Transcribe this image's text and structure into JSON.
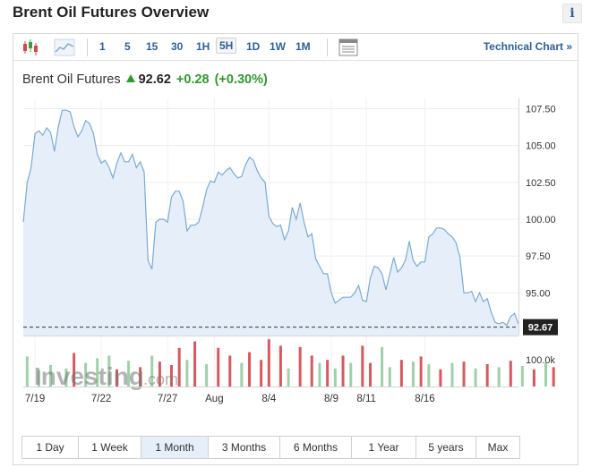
{
  "header": {
    "title": "Brent Oil Futures Overview",
    "info_label": "i"
  },
  "toolbar": {
    "intervals": [
      "1",
      "5",
      "15",
      "30",
      "1H",
      "5H",
      "1D",
      "1W",
      "1M"
    ],
    "active_interval": "5H",
    "technical_chart_label": "Technical Chart »",
    "icons": [
      "candlestick-icon",
      "area-chart-icon",
      "chart-layout-icon"
    ]
  },
  "quote": {
    "name": "Brent Oil Futures",
    "price": "92.62",
    "change": "+0.28",
    "change_pct": "(+0.30%)",
    "direction": "up"
  },
  "watermark": {
    "brand": "Investing",
    "suffix": ".com"
  },
  "colors": {
    "line": "#7aaad6",
    "area": "#e3edf8",
    "vol_up": "#9fd0a8",
    "vol_down": "#d9585e",
    "link": "#2a5fa0",
    "positive": "#2e9a2e"
  },
  "chart_data": {
    "type": "area",
    "y_ticks": [
      107.5,
      105.0,
      102.5,
      100.0,
      97.5,
      95.0
    ],
    "y_tick_labels": [
      "107.50",
      "105.00",
      "102.50",
      "100.00",
      "97.50",
      "95.00"
    ],
    "ylim": [
      92.1,
      108.2
    ],
    "last_price": 92.67,
    "last_price_label": "92.67",
    "x_tick_labels": [
      "7/19",
      "7/22",
      "7/27",
      "Aug",
      "8/4",
      "8/9",
      "8/11",
      "8/16"
    ],
    "x_tick_positions": [
      3,
      20,
      37,
      49,
      63,
      79,
      88,
      103
    ],
    "values": [
      99.8,
      102.5,
      103.5,
      105.8,
      106.0,
      105.7,
      106.2,
      105.9,
      104.6,
      106.3,
      107.4,
      107.4,
      107.3,
      106.3,
      105.6,
      106.0,
      106.7,
      106.5,
      105.8,
      104.4,
      103.8,
      104.0,
      103.5,
      102.8,
      103.8,
      104.5,
      103.9,
      103.9,
      104.4,
      103.5,
      103.9,
      103.2,
      97.2,
      96.6,
      99.8,
      100.0,
      100.0,
      99.8,
      101.5,
      101.9,
      101.9,
      101.2,
      99.2,
      99.6,
      99.6,
      99.8,
      100.8,
      102.0,
      102.6,
      102.5,
      103.2,
      103.0,
      103.3,
      103.5,
      103.1,
      102.8,
      102.9,
      103.7,
      104.2,
      104.0,
      103.3,
      102.8,
      102.5,
      100.2,
      99.7,
      99.5,
      99.6,
      98.6,
      99.2,
      100.8,
      100.0,
      101.1,
      99.8,
      98.8,
      99.0,
      97.3,
      96.8,
      96.3,
      96.3,
      95.0,
      94.3,
      94.5,
      94.7,
      94.7,
      94.7,
      95.0,
      95.5,
      94.5,
      94.4,
      96.0,
      96.8,
      96.7,
      96.3,
      95.2,
      96.3,
      97.4,
      96.4,
      96.7,
      97.2,
      98.5,
      97.2,
      96.8,
      97.1,
      97.1,
      98.8,
      99.0,
      99.4,
      99.4,
      99.3,
      99.0,
      98.8,
      98.4,
      97.4,
      95.0,
      95.0,
      95.1,
      94.4,
      95.0,
      94.4,
      94.6,
      93.7,
      93.0,
      92.9,
      93.0,
      92.8,
      93.4,
      93.6,
      92.9
    ],
    "volume_label": "100.0k",
    "volume_max": 100000,
    "volume": [
      [
        1,
        70,
        1
      ],
      [
        4,
        38,
        1
      ],
      [
        7,
        50,
        1
      ],
      [
        11,
        42,
        1
      ],
      [
        13,
        78,
        0
      ],
      [
        16,
        55,
        1
      ],
      [
        19,
        66,
        1
      ],
      [
        22,
        72,
        1
      ],
      [
        24,
        40,
        0
      ],
      [
        27,
        60,
        1
      ],
      [
        30,
        45,
        0
      ],
      [
        33,
        72,
        1
      ],
      [
        35,
        58,
        0
      ],
      [
        38,
        50,
        0
      ],
      [
        40,
        90,
        0
      ],
      [
        42,
        62,
        1
      ],
      [
        44,
        105,
        0
      ],
      [
        47,
        52,
        1
      ],
      [
        50,
        90,
        0
      ],
      [
        53,
        72,
        0
      ],
      [
        56,
        55,
        1
      ],
      [
        58,
        80,
        0
      ],
      [
        61,
        62,
        0
      ],
      [
        63,
        110,
        0
      ],
      [
        66,
        95,
        0
      ],
      [
        68,
        42,
        1
      ],
      [
        71,
        92,
        0
      ],
      [
        74,
        72,
        0
      ],
      [
        76,
        55,
        1
      ],
      [
        78,
        62,
        0
      ],
      [
        80,
        42,
        1
      ],
      [
        82,
        72,
        0
      ],
      [
        84,
        55,
        1
      ],
      [
        87,
        95,
        0
      ],
      [
        89,
        55,
        0
      ],
      [
        92,
        92,
        1
      ],
      [
        94,
        45,
        1
      ],
      [
        97,
        62,
        0
      ],
      [
        100,
        58,
        1
      ],
      [
        102,
        70,
        0
      ],
      [
        104,
        52,
        1
      ],
      [
        107,
        40,
        0
      ],
      [
        110,
        55,
        1
      ],
      [
        113,
        58,
        0
      ],
      [
        116,
        42,
        1
      ],
      [
        119,
        52,
        0
      ],
      [
        122,
        45,
        1
      ],
      [
        125,
        60,
        0
      ],
      [
        128,
        48,
        1
      ],
      [
        131,
        40,
        0
      ],
      [
        134,
        55,
        1
      ],
      [
        136,
        45,
        0
      ]
    ]
  },
  "ranges": {
    "items": [
      "1 Day",
      "1 Week",
      "1 Month",
      "3 Months",
      "6 Months",
      "1 Year",
      "5 years",
      "Max"
    ],
    "active": "1 Month"
  }
}
